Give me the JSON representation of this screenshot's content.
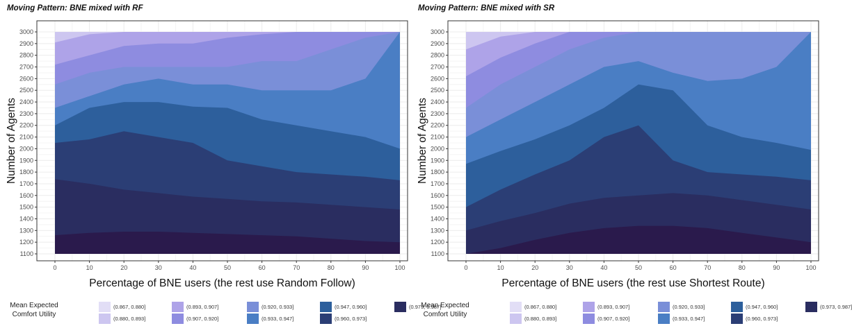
{
  "colors": {
    "band_colors": [
      "#e2def6",
      "#cdc6f0",
      "#aea3e8",
      "#8e8ce0",
      "#7a8fd8",
      "#4a7ec4",
      "#2d5f9c",
      "#2b3e75",
      "#2a2d60",
      "#2a1a4c"
    ]
  },
  "legend": {
    "title_line1": "Mean Expected",
    "title_line2": "Comfort Utility",
    "labels": [
      "(0.867, 0.880]",
      "(0.880, 0.893]",
      "(0.893, 0.907]",
      "(0.907, 0.920]",
      "(0.920, 0.933]",
      "(0.933, 0.947]",
      "(0.947, 0.960]",
      "(0.960, 0.973]",
      "(0.973, 0.987]"
    ]
  },
  "chart_data": [
    {
      "type": "area",
      "title": "Moving Pattern: BNE mixed with RF",
      "xlabel": "Percentage of BNE users (the rest use Random Follow)",
      "ylabel": "Number of Agents",
      "xlim": [
        0,
        100
      ],
      "ylim": [
        1100,
        3000
      ],
      "xticks": [
        "0",
        "10",
        "20",
        "30",
        "40",
        "50",
        "60",
        "70",
        "80",
        "90",
        "100"
      ],
      "yticks": [
        "1100",
        "1200",
        "1300",
        "1400",
        "1500",
        "1600",
        "1700",
        "1800",
        "1900",
        "2000",
        "2100",
        "2200",
        "2300",
        "2400",
        "2500",
        "2600",
        "2700",
        "2800",
        "2900",
        "3000"
      ],
      "grid": true,
      "legend_position": "bottom",
      "x": [
        0,
        10,
        20,
        30,
        40,
        50,
        60,
        70,
        80,
        90,
        100
      ],
      "band_upper_bounds": [
        [
          1260,
          1280,
          1290,
          1290,
          1280,
          1270,
          1260,
          1250,
          1230,
          1210,
          1200
        ],
        [
          1740,
          1700,
          1650,
          1620,
          1590,
          1570,
          1550,
          1540,
          1520,
          1500,
          1480
        ],
        [
          2050,
          2080,
          2150,
          2100,
          2050,
          1900,
          1850,
          1800,
          1780,
          1760,
          1730
        ],
        [
          2200,
          2350,
          2400,
          2400,
          2360,
          2350,
          2250,
          2200,
          2150,
          2100,
          2000
        ],
        [
          2350,
          2450,
          2550,
          2600,
          2550,
          2550,
          2500,
          2500,
          2500,
          2600,
          3000
        ],
        [
          2550,
          2650,
          2700,
          2700,
          2700,
          2700,
          2750,
          2750,
          2850,
          2950,
          3000
        ],
        [
          2720,
          2800,
          2880,
          2900,
          2900,
          2950,
          2980,
          3000,
          3000,
          3000,
          3000
        ],
        [
          2910,
          2980,
          3000,
          3000,
          3000,
          3000,
          3000,
          3000,
          3000,
          3000,
          3000
        ],
        [
          3000,
          3000,
          3000,
          3000,
          3000,
          3000,
          3000,
          3000,
          3000,
          3000,
          3000
        ]
      ]
    },
    {
      "type": "area",
      "title": "Moving Pattern: BNE mixed with SR",
      "xlabel": "Percentage of BNE users (the rest use Shortest Route)",
      "ylabel": "Number of Agents",
      "xlim": [
        0,
        100
      ],
      "ylim": [
        1100,
        3000
      ],
      "xticks": [
        "0",
        "10",
        "20",
        "30",
        "40",
        "50",
        "60",
        "70",
        "80",
        "90",
        "100"
      ],
      "yticks": [
        "1100",
        "1200",
        "1300",
        "1400",
        "1500",
        "1600",
        "1700",
        "1800",
        "1900",
        "2000",
        "2100",
        "2200",
        "2300",
        "2400",
        "2500",
        "2600",
        "2700",
        "2800",
        "2900",
        "3000"
      ],
      "grid": true,
      "legend_position": "bottom",
      "x": [
        0,
        10,
        20,
        30,
        40,
        50,
        60,
        70,
        80,
        90,
        100
      ],
      "band_upper_bounds": [
        [
          1100,
          1150,
          1220,
          1280,
          1320,
          1340,
          1340,
          1320,
          1280,
          1240,
          1200
        ],
        [
          1300,
          1380,
          1450,
          1530,
          1580,
          1600,
          1620,
          1600,
          1560,
          1520,
          1480
        ],
        [
          1500,
          1650,
          1780,
          1900,
          2100,
          2200,
          1900,
          1800,
          1780,
          1760,
          1730
        ],
        [
          1870,
          1980,
          2080,
          2200,
          2350,
          2550,
          2500,
          2200,
          2100,
          2050,
          1990
        ],
        [
          2100,
          2250,
          2400,
          2550,
          2700,
          2750,
          2650,
          2580,
          2600,
          2700,
          3000
        ],
        [
          2350,
          2550,
          2700,
          2850,
          2950,
          3000,
          3000,
          3000,
          3000,
          3000,
          3000
        ],
        [
          2620,
          2780,
          2900,
          3000,
          3000,
          3000,
          3000,
          3000,
          3000,
          3000,
          3000
        ],
        [
          2850,
          2960,
          3000,
          3000,
          3000,
          3000,
          3000,
          3000,
          3000,
          3000,
          3000
        ],
        [
          3000,
          3000,
          3000,
          3000,
          3000,
          3000,
          3000,
          3000,
          3000,
          3000,
          3000
        ]
      ]
    }
  ]
}
